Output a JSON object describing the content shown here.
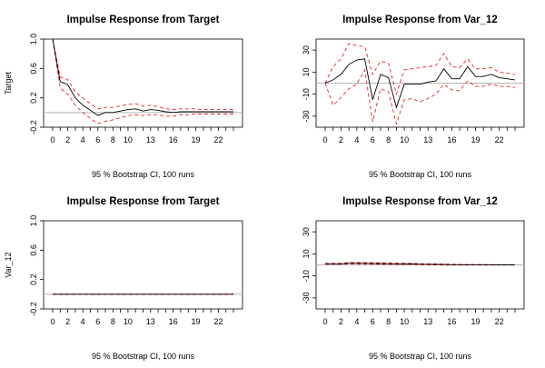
{
  "chart_data": [
    {
      "type": "line",
      "title": "Impulse Response from Target",
      "ylabel": "Target",
      "xlabel": "95 % Bootstrap CI,  100 runs",
      "ylim": [
        -0.2,
        1.0
      ],
      "yticks": [
        "-0.2",
        "0.2",
        "0.6",
        "1.0"
      ],
      "xlim": [
        0,
        24
      ],
      "xticks": [
        "0",
        "2",
        "4",
        "6",
        "8",
        "10",
        "13",
        "16",
        "19",
        "22"
      ],
      "x": [
        0,
        1,
        2,
        3,
        4,
        5,
        6,
        7,
        8,
        9,
        10,
        11,
        12,
        13,
        14,
        15,
        16,
        17,
        18,
        19,
        20,
        21,
        22,
        23,
        24
      ],
      "series": [
        {
          "values": [
            1.0,
            0.42,
            0.38,
            0.2,
            0.1,
            0.03,
            -0.04,
            0.0,
            0.0,
            0.02,
            0.04,
            0.05,
            0.02,
            0.04,
            0.03,
            0.01,
            0.0,
            0.01,
            0.01,
            0.01,
            0.01,
            0.01,
            0.01,
            0.01,
            0.01
          ],
          "color": "#000000",
          "style": "solid"
        },
        {
          "values": [
            1.0,
            0.48,
            0.45,
            0.28,
            0.2,
            0.12,
            0.05,
            0.07,
            0.07,
            0.09,
            0.11,
            0.12,
            0.09,
            0.1,
            0.08,
            0.05,
            0.04,
            0.05,
            0.05,
            0.05,
            0.04,
            0.04,
            0.04,
            0.04,
            0.04
          ],
          "color": "#e8232a",
          "style": "dashed"
        },
        {
          "values": [
            1.0,
            0.33,
            0.25,
            0.1,
            0.0,
            -0.08,
            -0.15,
            -0.12,
            -0.1,
            -0.07,
            -0.04,
            -0.03,
            -0.04,
            -0.03,
            -0.03,
            -0.05,
            -0.05,
            -0.03,
            -0.03,
            -0.02,
            -0.02,
            -0.02,
            -0.02,
            -0.02,
            -0.02
          ],
          "color": "#e8232a",
          "style": "dashed"
        }
      ],
      "zero_line": true
    },
    {
      "type": "line",
      "title": "Impulse Response from Var_12",
      "ylabel": "",
      "xlabel": "95 % Bootstrap CI,  100 runs",
      "ylim": [
        -40,
        40
      ],
      "yticks": [
        "-30",
        "-10",
        "10",
        "30"
      ],
      "xlim": [
        0,
        24
      ],
      "xticks": [
        "0",
        "2",
        "4",
        "6",
        "8",
        "10",
        "13",
        "16",
        "19",
        "22"
      ],
      "x": [
        0,
        1,
        2,
        3,
        4,
        5,
        6,
        7,
        8,
        9,
        10,
        11,
        12,
        13,
        14,
        15,
        16,
        17,
        18,
        19,
        20,
        21,
        22,
        23,
        24
      ],
      "series": [
        {
          "values": [
            0,
            3,
            8,
            17,
            21,
            22,
            -15,
            8,
            5,
            -22,
            -1,
            -1,
            -1,
            1,
            2,
            13,
            4,
            4,
            15,
            6,
            6,
            8,
            5,
            4,
            3
          ],
          "color": "#000000",
          "style": "solid"
        },
        {
          "values": [
            0,
            15,
            22,
            36,
            34,
            33,
            8,
            20,
            18,
            -10,
            12,
            13,
            14,
            15,
            16,
            27,
            15,
            14,
            22,
            13,
            13,
            14,
            10,
            9,
            8
          ],
          "color": "#e8232a",
          "style": "dashed"
        },
        {
          "values": [
            0,
            -20,
            -13,
            -5,
            -1,
            12,
            -35,
            -5,
            -8,
            -37,
            -15,
            -14,
            -17,
            -14,
            -10,
            -1,
            -6,
            -7,
            2,
            -3,
            -3,
            -1,
            -3,
            -3,
            -4
          ],
          "color": "#e8232a",
          "style": "dashed"
        }
      ],
      "zero_line": true
    },
    {
      "type": "line",
      "title": "Impulse Response from Target",
      "ylabel": "Var_12",
      "xlabel": "95 % Bootstrap CI,  100 runs",
      "ylim": [
        -0.2,
        1.0
      ],
      "yticks": [
        "-0.2",
        "0.2",
        "0.6",
        "1.0"
      ],
      "xlim": [
        0,
        24
      ],
      "xticks": [
        "0",
        "2",
        "4",
        "6",
        "8",
        "10",
        "13",
        "16",
        "19",
        "22"
      ],
      "x": [
        0,
        1,
        2,
        3,
        4,
        5,
        6,
        7,
        8,
        9,
        10,
        11,
        12,
        13,
        14,
        15,
        16,
        17,
        18,
        19,
        20,
        21,
        22,
        23,
        24
      ],
      "series": [
        {
          "values": [
            0,
            0,
            0,
            0,
            0,
            0,
            0,
            0,
            0,
            0,
            0,
            0,
            0,
            0,
            0,
            0,
            0,
            0,
            0,
            0,
            0,
            0,
            0,
            0,
            0
          ],
          "color": "#000000",
          "style": "solid"
        },
        {
          "values": [
            0.002,
            0.002,
            0.002,
            0.002,
            0.002,
            0.002,
            0.002,
            0.002,
            0.002,
            0.002,
            0.002,
            0.002,
            0.002,
            0.002,
            0.002,
            0.002,
            0.002,
            0.002,
            0.002,
            0.002,
            0.002,
            0.002,
            0.002,
            0.002,
            0.002
          ],
          "color": "#e8232a",
          "style": "dashed"
        },
        {
          "values": [
            -0.002,
            -0.002,
            -0.002,
            -0.002,
            -0.002,
            -0.002,
            -0.002,
            -0.002,
            -0.002,
            -0.002,
            -0.002,
            -0.002,
            -0.002,
            -0.002,
            -0.002,
            -0.002,
            -0.002,
            -0.002,
            -0.002,
            -0.002,
            -0.002,
            -0.002,
            -0.002,
            -0.002,
            -0.002
          ],
          "color": "#e8232a",
          "style": "dashed"
        }
      ],
      "zero_line": true
    },
    {
      "type": "line",
      "title": "Impulse Response from Var_12",
      "ylabel": "",
      "xlabel": "95 % Bootstrap CI,  100 runs",
      "ylim": [
        -40,
        40
      ],
      "yticks": [
        "-30",
        "-10",
        "10",
        "30"
      ],
      "xlim": [
        0,
        24
      ],
      "xticks": [
        "0",
        "2",
        "4",
        "6",
        "8",
        "10",
        "13",
        "16",
        "19",
        "22"
      ],
      "x": [
        0,
        1,
        2,
        3,
        4,
        5,
        6,
        7,
        8,
        9,
        10,
        11,
        12,
        13,
        14,
        15,
        16,
        17,
        18,
        19,
        20,
        21,
        22,
        23,
        24
      ],
      "series": [
        {
          "values": [
            1.0,
            1.0,
            1.0,
            1.5,
            1.5,
            1.4,
            1.3,
            1.2,
            1.1,
            1.0,
            0.9,
            0.8,
            0.6,
            0.5,
            0.4,
            0.3,
            0.2,
            0.15,
            0.1,
            0.1,
            0.05,
            0.05,
            0.03,
            0.02,
            0.02
          ],
          "color": "#000000",
          "style": "solid"
        },
        {
          "values": [
            1.4,
            1.4,
            1.5,
            2.1,
            2.2,
            2.1,
            2.0,
            1.9,
            1.8,
            1.6,
            1.5,
            1.3,
            1.1,
            1.0,
            0.8,
            0.7,
            0.6,
            0.5,
            0.4,
            0.35,
            0.3,
            0.25,
            0.2,
            0.2,
            0.2
          ],
          "color": "#e8232a",
          "style": "dashed"
        },
        {
          "values": [
            0.6,
            0.6,
            0.5,
            0.9,
            0.8,
            0.7,
            0.6,
            0.5,
            0.4,
            0.4,
            0.3,
            0.3,
            0.1,
            0.0,
            0.0,
            -0.1,
            -0.2,
            -0.2,
            -0.2,
            -0.15,
            -0.2,
            -0.15,
            -0.15,
            -0.15,
            -0.15
          ],
          "color": "#e8232a",
          "style": "dashed"
        }
      ],
      "zero_line": true
    }
  ]
}
